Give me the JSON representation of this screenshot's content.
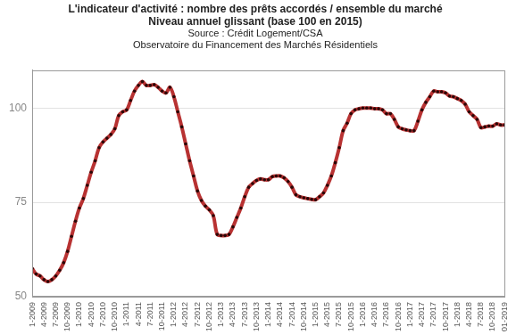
{
  "chart_data": {
    "type": "line",
    "title": [
      "L'indicateur d'activité : nombre des prêts accordés / ensemble du marché",
      "Niveau annuel glissant (base 100 en 2015)"
    ],
    "subtitle": [
      "Source : Crédit Logement/CSA",
      "Observatoire du Financement des Marchés Résidentiels"
    ],
    "categories": [
      "1-2009",
      null,
      null,
      "4-2009",
      null,
      null,
      "7-2009",
      null,
      null,
      "10-2009",
      null,
      null,
      "1-2010",
      null,
      null,
      "4-2010",
      null,
      null,
      "7-2010",
      null,
      null,
      "10-2010",
      null,
      null,
      "1-2011",
      null,
      null,
      "4-2011",
      null,
      null,
      "7-2011",
      null,
      null,
      "10-2011",
      null,
      null,
      "1-2012",
      null,
      null,
      "4-2012",
      null,
      null,
      "7-2012",
      null,
      null,
      "10-2012",
      null,
      null,
      "1-2013",
      null,
      null,
      "4-2013",
      null,
      null,
      "7-2013",
      null,
      null,
      "10-2013",
      null,
      null,
      "1-2014",
      null,
      null,
      "4-2014",
      null,
      null,
      "7-2014",
      null,
      null,
      "10-2014",
      null,
      null,
      "1-2015",
      null,
      null,
      "4-2015",
      null,
      null,
      "7-2015",
      null,
      null,
      "10-2015",
      null,
      null,
      "1-2016",
      null,
      null,
      "4-2016",
      null,
      null,
      "7-2016",
      null,
      null,
      "10-2016",
      null,
      null,
      "1-2017",
      null,
      null,
      "4-2017",
      null,
      null,
      "7-2017",
      null,
      null,
      "10-2017",
      null,
      null,
      "1-2018",
      null,
      null,
      "4-2018",
      null,
      null,
      "7-2018",
      null,
      null,
      "10-2018",
      null,
      null,
      "01-2019"
    ],
    "values": [
      57.5,
      56,
      55.5,
      54.5,
      54,
      54.5,
      55.5,
      57,
      59,
      62,
      66,
      70,
      73.5,
      76,
      79.5,
      83,
      86,
      89.5,
      91,
      92,
      93,
      94.5,
      98,
      99,
      99.5,
      102,
      104.5,
      106,
      107,
      106,
      106,
      106.2,
      105.5,
      104.5,
      104,
      105.5,
      103,
      99,
      95,
      90.5,
      86,
      82,
      78,
      75.5,
      74,
      73,
      71.5,
      66.5,
      66.2,
      66.2,
      66.5,
      68.5,
      71,
      73.5,
      76.5,
      79,
      80,
      80.8,
      81.2,
      81,
      81,
      81.8,
      82,
      82,
      81.5,
      80.5,
      79,
      77,
      76.5,
      76.2,
      76,
      75.8,
      75.7,
      76.5,
      77.5,
      79.5,
      82,
      85.5,
      89.5,
      94,
      96,
      98.5,
      99.5,
      99.8,
      100,
      100,
      100,
      99.8,
      99.8,
      99.5,
      98.5,
      98.5,
      97,
      95,
      94.5,
      94.2,
      94,
      94,
      96.5,
      99.5,
      101.5,
      103,
      104.5,
      104.3,
      104.3,
      104,
      103.2,
      103,
      102.5,
      102,
      101,
      99,
      98,
      97,
      94.8,
      95,
      95.2,
      95.2,
      95.8,
      95.5,
      95.5
    ],
    "color": "#b83232",
    "marker": "circle",
    "ylim": [
      50,
      110
    ],
    "yticks": [
      50,
      75,
      100
    ],
    "grid": true
  }
}
